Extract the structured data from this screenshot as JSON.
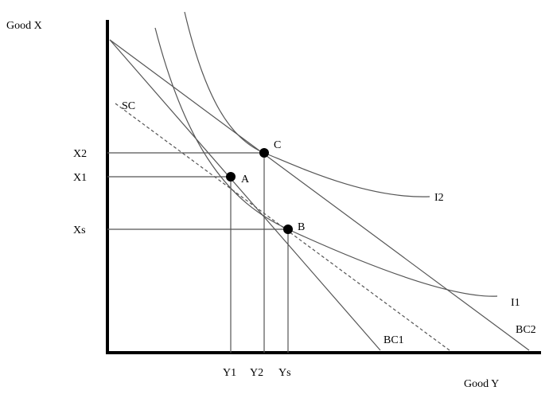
{
  "axes": {
    "y_label": "Good X",
    "x_label": "Good Y"
  },
  "y_ticks": [
    "X2",
    "X1",
    "Xs"
  ],
  "x_ticks": [
    "Y1",
    "Y2",
    "Ys"
  ],
  "points": [
    "A",
    "B",
    "C"
  ],
  "lines": [
    "SC",
    "BC1",
    "BC2"
  ],
  "curves": [
    "I1",
    "I2"
  ]
}
